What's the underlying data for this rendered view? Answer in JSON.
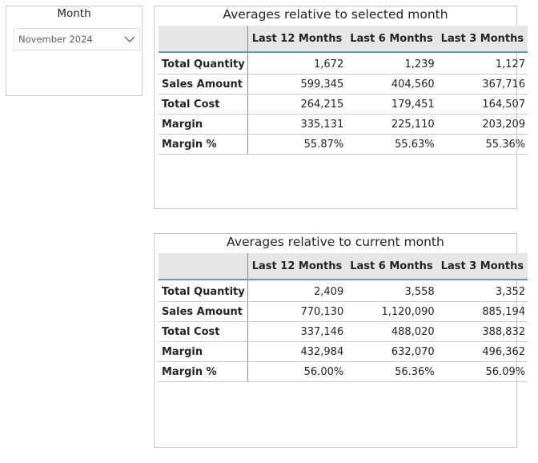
{
  "slicer": {
    "title": "Month",
    "selected": "November 2024",
    "icon": "chevron-down-icon"
  },
  "tables": {
    "selected": {
      "title": "Averages relative to selected month",
      "columns": [
        "",
        "Last 12 Months",
        "Last 6 Months",
        "Last 3 Months"
      ],
      "rows": [
        {
          "label": "Total Quantity",
          "values": [
            "1,672",
            "1,239",
            "1,127"
          ]
        },
        {
          "label": "Sales Amount",
          "values": [
            "599,345",
            "404,560",
            "367,716"
          ]
        },
        {
          "label": "Total Cost",
          "values": [
            "264,215",
            "179,451",
            "164,507"
          ]
        },
        {
          "label": "Margin",
          "values": [
            "335,131",
            "225,110",
            "203,209"
          ]
        },
        {
          "label": "Margin %",
          "values": [
            "55.87%",
            "55.63%",
            "55.36%"
          ]
        }
      ]
    },
    "current": {
      "title": "Averages relative to current month",
      "columns": [
        "",
        "Last 12 Months",
        "Last 6 Months",
        "Last 3 Months"
      ],
      "rows": [
        {
          "label": "Total Quantity",
          "values": [
            "2,409",
            "3,558",
            "3,352"
          ]
        },
        {
          "label": "Sales Amount",
          "values": [
            "770,130",
            "1,120,090",
            "885,194"
          ]
        },
        {
          "label": "Total Cost",
          "values": [
            "337,146",
            "488,020",
            "388,832"
          ]
        },
        {
          "label": "Margin",
          "values": [
            "432,984",
            "632,070",
            "496,362"
          ]
        },
        {
          "label": "Margin %",
          "values": [
            "56.00%",
            "56.36%",
            "56.09%"
          ]
        }
      ]
    }
  },
  "colors": {
    "header_bg": "#e6e6e6",
    "accent": "#5b9bd5",
    "border": "#c8c8c8",
    "text": "#252423"
  }
}
